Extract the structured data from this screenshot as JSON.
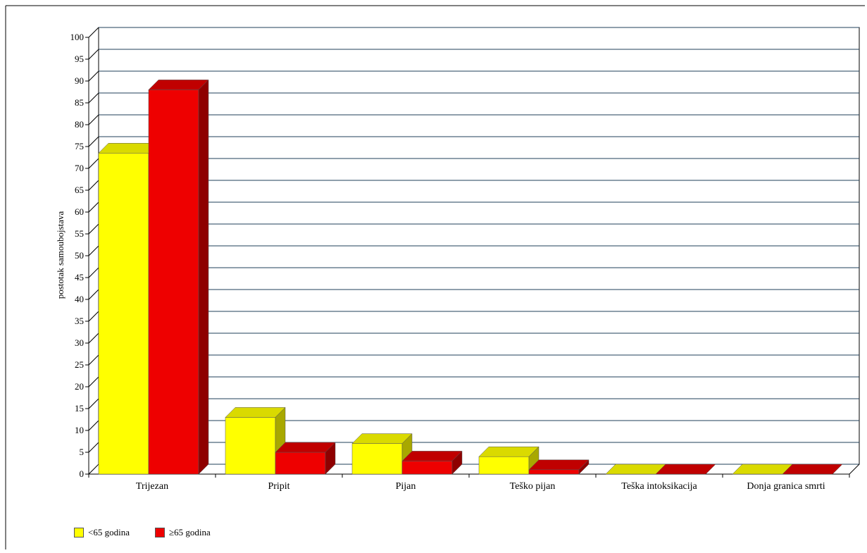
{
  "chart_data": {
    "type": "bar",
    "title": "",
    "xlabel": "",
    "ylabel": "postotak samoubojstava",
    "ylim": [
      0,
      100
    ],
    "ytick_step": 5,
    "grid": true,
    "legend_position": "bottom-left",
    "categories": [
      "Trijezan",
      "Pripit",
      "Pijan",
      "Teško pijan",
      "Teška intoksikacija",
      "Donja granica smrti"
    ],
    "series": [
      {
        "name": "<65 godina",
        "color": "#ffff00",
        "values": [
          73.5,
          13,
          7,
          4,
          0,
          0
        ]
      },
      {
        "name": "≥65 godina",
        "color": "#ee0000",
        "values": [
          88,
          5,
          3,
          1,
          0,
          0
        ]
      }
    ]
  }
}
